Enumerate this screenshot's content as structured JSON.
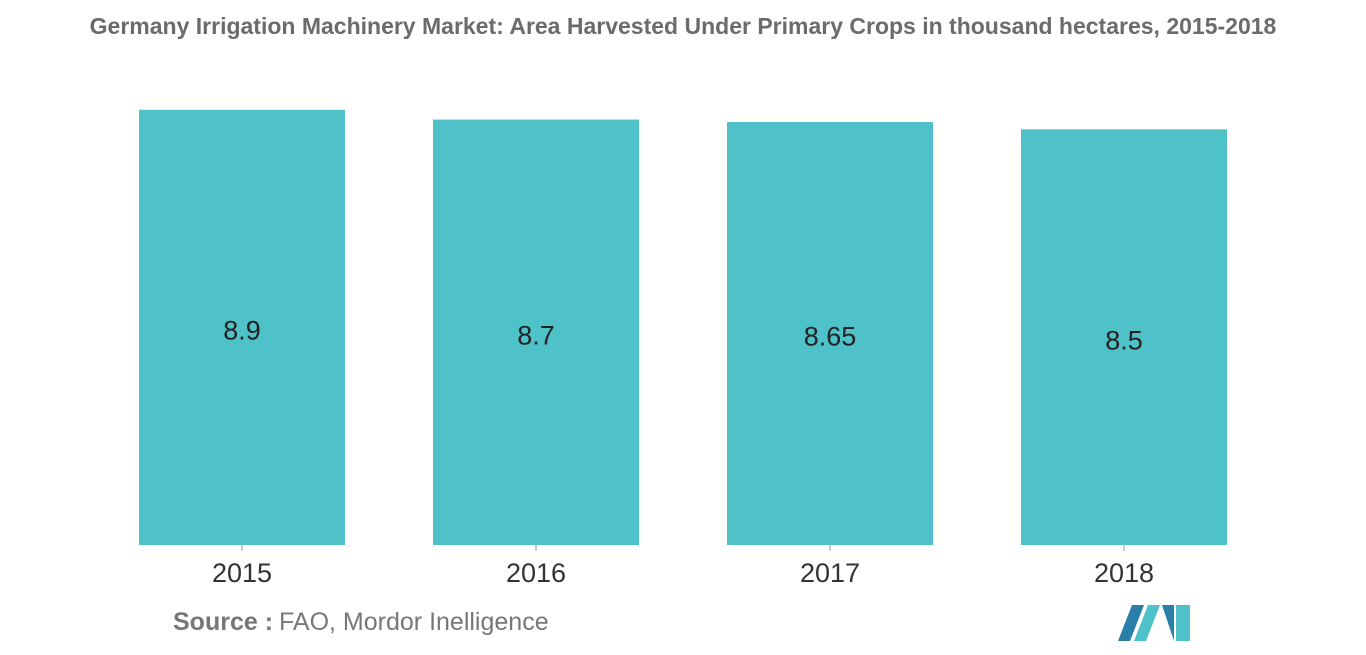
{
  "chart_data": {
    "type": "bar",
    "title": "Germany Irrigation Machinery Market: Area Harvested Under Primary Crops in thousand hectares, 2015-2018",
    "categories": [
      "2015",
      "2016",
      "2017",
      "2018"
    ],
    "values": [
      8.9,
      8.7,
      8.65,
      8.5
    ],
    "color": "#4fc2c9",
    "source_label": "Source :",
    "source": "FAO, Mordor Inelligence"
  }
}
